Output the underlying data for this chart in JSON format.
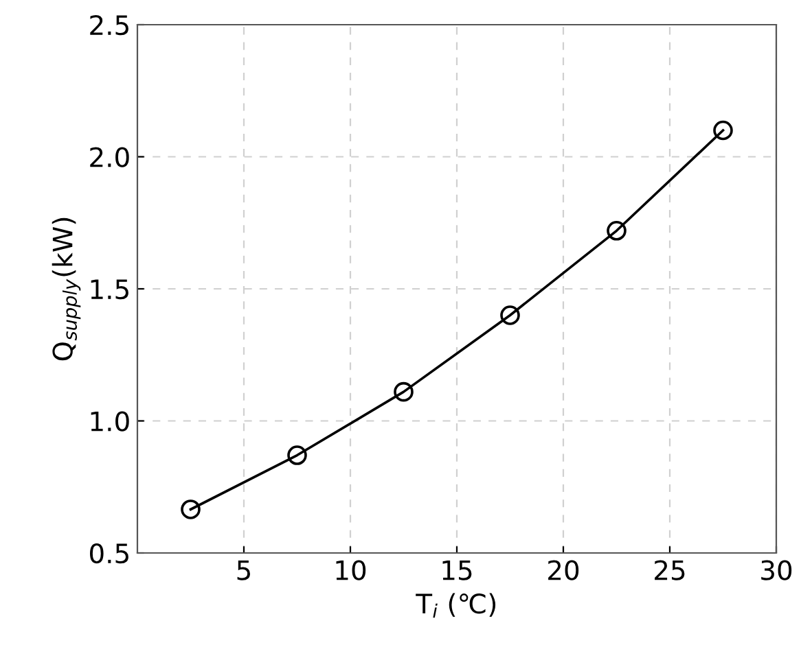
{
  "chart_data": {
    "type": "line",
    "xlabel": "T$_{i}$ (℃)",
    "ylabel": "Q$_{supply}$(kW)",
    "x": [
      2.5,
      7.5,
      12.5,
      17.5,
      22.5,
      27.5
    ],
    "series": [
      {
        "color": "#000000",
        "values": [
          0.665,
          0.87,
          1.11,
          1.4,
          1.72,
          2.1
        ]
      }
    ],
    "xlim": [
      0,
      30
    ],
    "xticks": [
      5,
      10,
      15,
      20,
      25,
      30
    ],
    "ylim": [
      0.5,
      2.5
    ],
    "yticks": [
      {
        "value": 0.5,
        "label": "0.5"
      },
      {
        "value": 1.0,
        "label": "1.0"
      },
      {
        "value": 1.5,
        "label": "1.5"
      },
      {
        "value": 2.0,
        "label": "2.0"
      },
      {
        "value": 2.5,
        "label": "2.5"
      }
    ],
    "grid": true,
    "marker": "circle",
    "line_style": "solid"
  }
}
